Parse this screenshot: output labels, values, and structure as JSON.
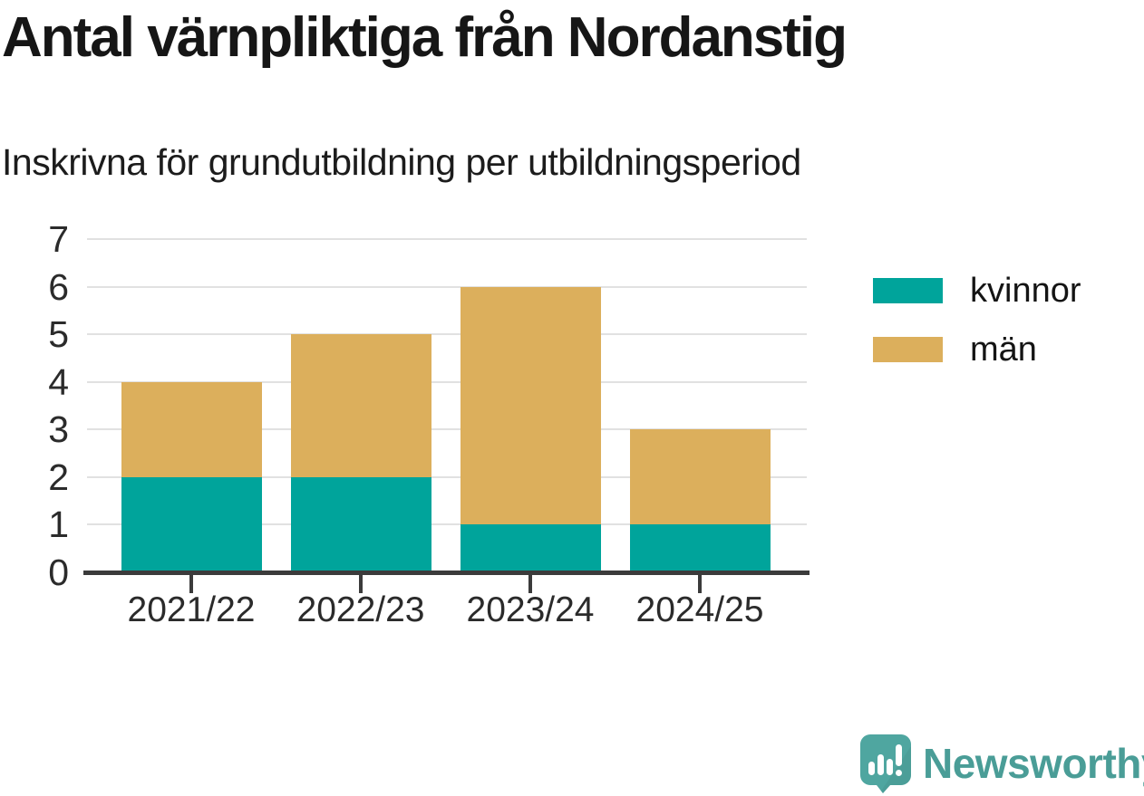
{
  "chart_data": {
    "type": "bar",
    "stacked": true,
    "title": "Antal värnpliktiga från Nordanstig",
    "subtitle": "Inskrivna för grundutbildning per utbildningsperiod",
    "categories": [
      "2021/22",
      "2022/23",
      "2023/24",
      "2024/25"
    ],
    "series": [
      {
        "name": "kvinnor",
        "color": "#00A49B",
        "values": [
          2,
          2,
          1,
          1
        ]
      },
      {
        "name": "män",
        "color": "#DCAF5C",
        "values": [
          2,
          3,
          5,
          2
        ]
      }
    ],
    "totals": [
      4,
      5,
      6,
      3
    ],
    "xlabel": "",
    "ylabel": "",
    "ylim": [
      0,
      7
    ],
    "yticks": [
      0,
      1,
      2,
      3,
      4,
      5,
      6,
      7
    ],
    "grid": true,
    "legend_position": "right"
  },
  "style_colors": {
    "grid": "#E1E1E1",
    "axis": "#3B3B3B",
    "title_text": "#161616",
    "axis_text": "#2B2B2B"
  },
  "branding": {
    "name": "Newsworthy",
    "bubble_color": "#4FA6A0",
    "bubble_shade": "#47958F",
    "text_color": "#4A9D97",
    "glyph": "bar-chart-exclamation-speech-bubble"
  }
}
